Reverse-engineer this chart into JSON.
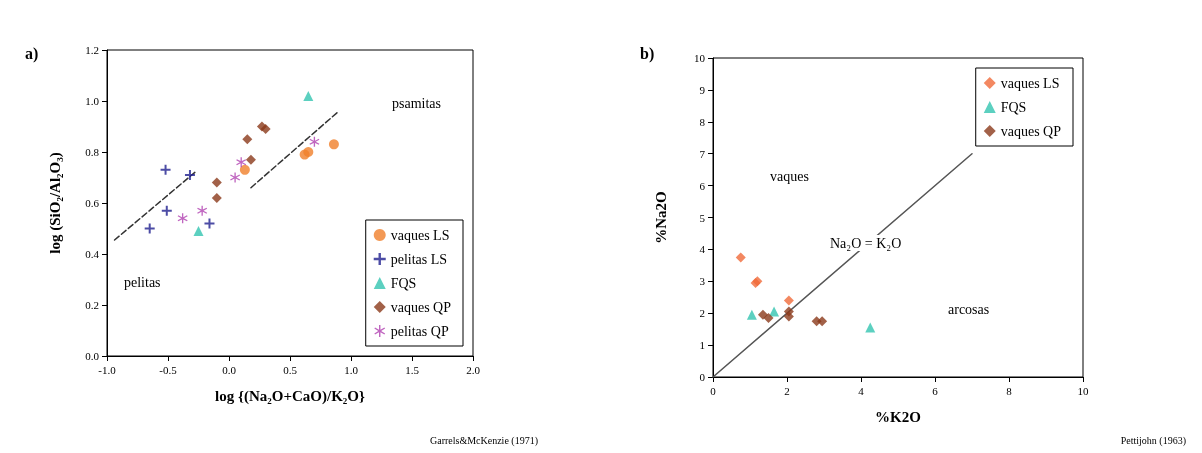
{
  "chart_data": [
    {
      "type": "scatter",
      "title": "a)",
      "xlabel": "log {(Na₂O+CaO)/K₂O}",
      "ylabel": "log (SiO₂/Al₂O₃)",
      "xlim": [
        -1.0,
        2.0
      ],
      "xticks": [
        {
          "value": -1,
          "label": "-1.0"
        },
        {
          "value": -0.5,
          "label": "-0.5"
        },
        {
          "value": 0,
          "label": "0.0"
        },
        {
          "value": 0.5,
          "label": "0.5"
        },
        {
          "value": 1,
          "label": "1.0"
        },
        {
          "value": 1.5,
          "label": "1.5"
        },
        {
          "value": 2,
          "label": "2.0"
        }
      ],
      "ylim": [
        0,
        1.2
      ],
      "yticks": [
        {
          "value": 0,
          "label": "0.0"
        },
        {
          "value": 0.2,
          "label": "0.2"
        },
        {
          "value": 0.4,
          "label": "0.4"
        },
        {
          "value": 0.6,
          "label": "0.6"
        },
        {
          "value": 0.8,
          "label": "0.8"
        },
        {
          "value": 1,
          "label": "1.0"
        },
        {
          "value": 1.2,
          "label": "1.2"
        }
      ],
      "grid": false,
      "legend": "bottom right",
      "series": [
        {
          "name": "vaques LS",
          "color": "#f07f2a",
          "marker": "circle",
          "x": [
            0.13,
            0.62,
            0.65,
            0.86
          ],
          "values": [
            0.73,
            0.79,
            0.8,
            0.83
          ]
        },
        {
          "name": "pelitas LS",
          "color": "#1f1f8f",
          "marker": "cross",
          "x": [
            -0.52,
            -0.32,
            -0.51,
            -0.65,
            -0.16
          ],
          "values": [
            0.73,
            0.71,
            0.57,
            0.5,
            0.52
          ]
        },
        {
          "name": "FQS",
          "color": "#33c4b0",
          "marker": "triangle",
          "x": [
            0.65,
            -0.25
          ],
          "values": [
            1.02,
            0.49
          ]
        },
        {
          "name": "vaques QP",
          "color": "#8b3a1a",
          "marker": "diamond",
          "x": [
            -0.1,
            -0.1,
            0.15,
            0.18,
            0.27,
            0.3
          ],
          "values": [
            0.68,
            0.62,
            0.85,
            0.77,
            0.9,
            0.89
          ]
        },
        {
          "name": "pelitas QP",
          "color": "#b040b0",
          "marker": "star",
          "x": [
            -0.38,
            -0.22,
            0.05,
            0.1,
            0.7
          ],
          "values": [
            0.54,
            0.57,
            0.7,
            0.76,
            0.84
          ]
        },
        {
          "type": "line",
          "color": "#333333",
          "marker": "none",
          "line_style": "dashed",
          "x": [
            -0.28,
            -0.95
          ],
          "values": [
            0.72,
            0.45
          ]
        },
        {
          "type": "line",
          "color": "#333333",
          "marker": "none",
          "line_style": "dashed",
          "x": [
            0.18,
            0.9
          ],
          "values": [
            0.66,
            0.96
          ]
        }
      ],
      "annotations": [
        "psamitas",
        "pelitas",
        "Garrels&McKenzie (1971)"
      ]
    },
    {
      "type": "scatter",
      "title": "b)",
      "xlabel": "%K2O",
      "ylabel": "%Na2O",
      "xlim": [
        0,
        10
      ],
      "xticks": [
        0,
        2,
        4,
        6,
        8,
        10
      ],
      "ylim": [
        0,
        10
      ],
      "yticks": [
        0,
        1,
        2,
        3,
        4,
        5,
        6,
        7,
        8,
        9,
        10
      ],
      "grid": false,
      "legend": "top right",
      "series": [
        {
          "name": "vaques LS",
          "color": "#f06a3a",
          "marker": "diamond",
          "x": [
            0.75,
            1.15,
            1.2,
            2.05
          ],
          "values": [
            3.75,
            2.95,
            3.0,
            2.4
          ]
        },
        {
          "name": "FQS",
          "color": "#33c4b0",
          "marker": "triangle",
          "x": [
            1.05,
            1.65,
            4.25
          ],
          "values": [
            1.95,
            2.05,
            1.55
          ]
        },
        {
          "name": "vaques QP",
          "color": "#8b3a1a",
          "marker": "diamond",
          "x": [
            1.35,
            1.5,
            2.05,
            2.05,
            2.8,
            2.95
          ],
          "values": [
            1.95,
            1.85,
            2.05,
            1.9,
            1.75,
            1.75
          ]
        },
        {
          "type": "line",
          "color": "#555555",
          "marker": "none",
          "line_style": "solid",
          "x": [
            0,
            7
          ],
          "values": [
            0,
            7
          ]
        }
      ],
      "annotations": [
        "vaques",
        "Na₂O = K₂O",
        "arcosas",
        "Pettijohn (1963)"
      ]
    }
  ]
}
